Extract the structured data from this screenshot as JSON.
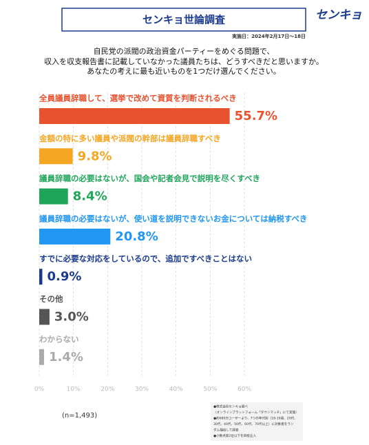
{
  "header": {
    "title": "センキョ世論調査",
    "logo": "センキョ",
    "date": "実施日：2024年2月17日〜18日"
  },
  "question": [
    "自民党の派閥の政治資金パーティーをめぐる問題で、",
    "収入を収支報告書に記載していなかった議員たちは、どうすべきだと思いますか。",
    "あなたの考えに最も近いものを1つだけ選んでください。"
  ],
  "chart_data": {
    "type": "bar",
    "orientation": "horizontal",
    "categories": [
      "全員議員辞職して、選挙で改めて資質を判断されるべき",
      "金額の特に多い議員や派閥の幹部は議員辞職すべき",
      "議員辞職の必要はないが、国会や記者会見で説明を尽くすべき",
      "議員辞職の必要はないが、使い道を説明できないお金については納税すべき",
      "すでに必要な対応をしているので、追加ですべきことはない",
      "その他",
      "わからない"
    ],
    "values": [
      55.7,
      9.8,
      8.4,
      20.8,
      0.9,
      3.0,
      1.4
    ],
    "value_labels": [
      "55.7%",
      "9.8%",
      "8.4%",
      "20.8%",
      "0.9%",
      "3.0%",
      "1.4%"
    ],
    "colors": [
      "#e8522f",
      "#f5a623",
      "#1fa55a",
      "#2196f3",
      "#1a3a8c",
      "#555555",
      "#aaaaaa"
    ],
    "xlim": [
      0,
      60
    ],
    "xticks": [
      {
        "value": 0,
        "label": "0%"
      },
      {
        "value": 10,
        "label": "10%"
      },
      {
        "value": 20,
        "label": "20%"
      },
      {
        "value": 30,
        "label": "30%"
      },
      {
        "value": 40,
        "label": "40%"
      },
      {
        "value": 50,
        "label": "50%"
      },
      {
        "value": 60,
        "label": "60%"
      }
    ],
    "grid": true
  },
  "sample": "(n=1,493)",
  "notes": [
    "●株式会社センキョ調べ",
    "（オンラインプラットフォーム「タウンマッチ」にて実施）",
    "●約680万ユーザーより、7つの年代別（18-19歳、20代、",
    "30代、40代、50代、60代、70代以上）に対象者をラン",
    "ダム抽出して調査",
    "●小数点第2位以下を四捨五入"
  ]
}
